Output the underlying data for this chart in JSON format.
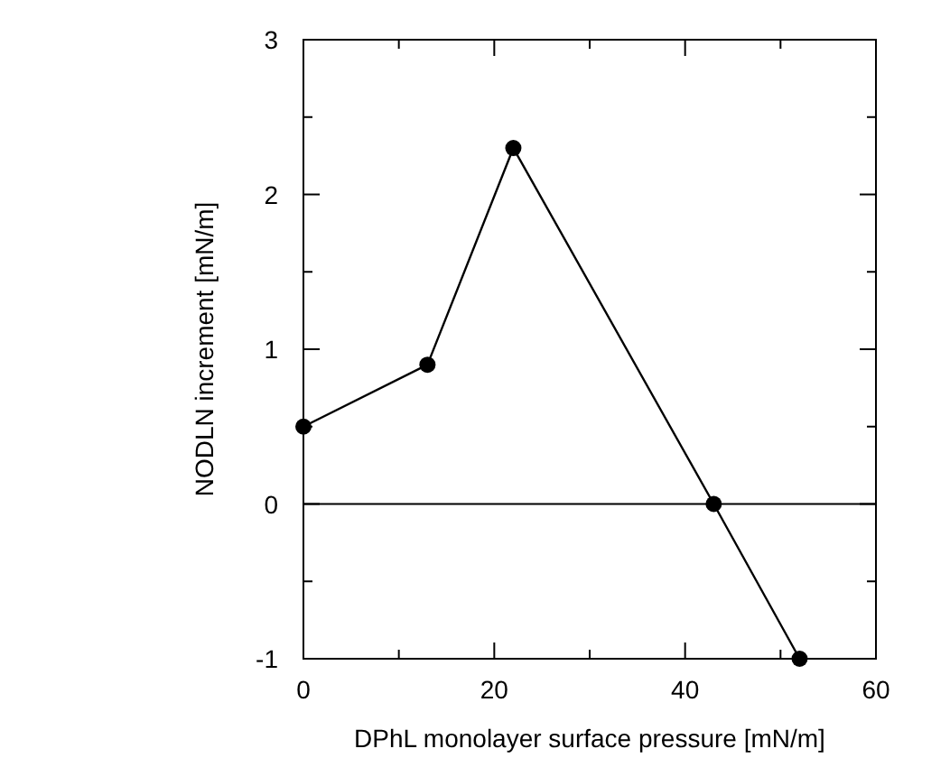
{
  "chart_data": {
    "type": "line",
    "xlabel": "DPhL monolayer surface pressure [mN/m]",
    "ylabel": "NODLN increment [mN/m]",
    "x": [
      0,
      13,
      22,
      43,
      52
    ],
    "series": [
      {
        "color": "#000000",
        "values": [
          0.5,
          0.9,
          2.3,
          0,
          -1
        ]
      }
    ],
    "xlim": [
      0,
      60
    ],
    "xticks": [
      0,
      {
        "value": 10,
        "label": null
      },
      20,
      {
        "value": 30,
        "label": null
      },
      40,
      {
        "value": 50,
        "label": null
      },
      60
    ],
    "ylim": [
      -1,
      3
    ],
    "yticks": [
      -1,
      {
        "value": -0.5,
        "label": null
      },
      0,
      {
        "value": 0.5,
        "label": null
      },
      1,
      {
        "value": 1.5,
        "label": null
      },
      2,
      {
        "value": 2.5,
        "label": null
      },
      3
    ],
    "ref_lines": [
      {
        "axis": "y",
        "value": 0,
        "color": "#000000"
      }
    ],
    "marker": "circle",
    "line_style": "solid",
    "grid": false
  }
}
